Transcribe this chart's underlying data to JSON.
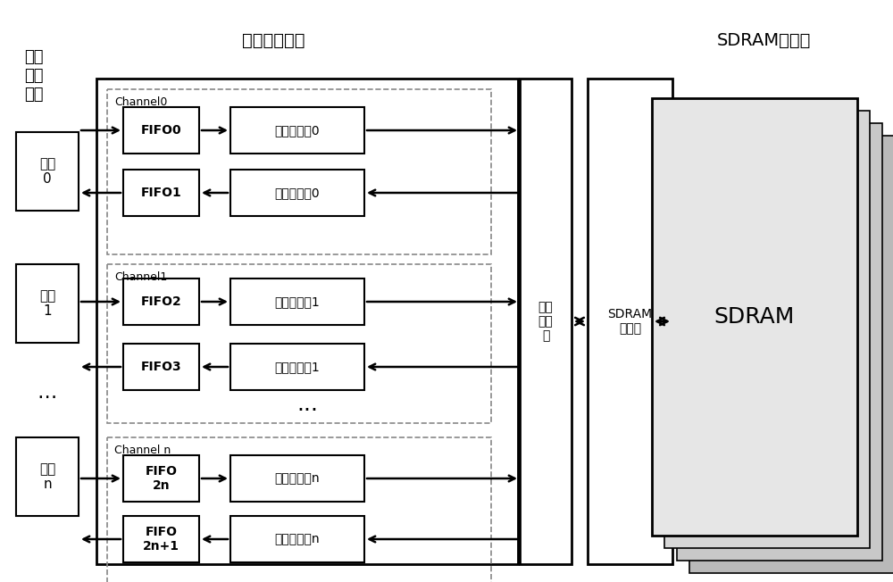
{
  "bg_color": "#ffffff",
  "title_arbitration": "数据仲裁调度",
  "title_sdram_mem": "SDRAM存储器",
  "label_parallel": "多路\n并行\n数据",
  "data_labels": [
    "数据\n0",
    "数据\n1",
    "数据\nn"
  ],
  "fifo_labels_ch0": [
    "FIFO0",
    "FIFO1"
  ],
  "fifo_labels_ch1": [
    "FIFO2",
    "FIFO3"
  ],
  "fifo_labels_chn": [
    "FIFO\n2n",
    "FIFO\n2n+1"
  ],
  "addr_labels_ch0": [
    "写地址计算0",
    "读地址计算0"
  ],
  "addr_labels_ch1": [
    "写地址计算1",
    "读地址计算1"
  ],
  "addr_labels_chn": [
    "写地址计算n",
    "读地址计算n"
  ],
  "channel_labels": [
    "Channel0",
    "Channel1",
    "Channel n"
  ],
  "arbiter_label": "多条\n件仲\n裁",
  "sdram_ctrl_label": "SDRAM\n控制器",
  "sdram_label": "SDRAM",
  "dots": "···"
}
